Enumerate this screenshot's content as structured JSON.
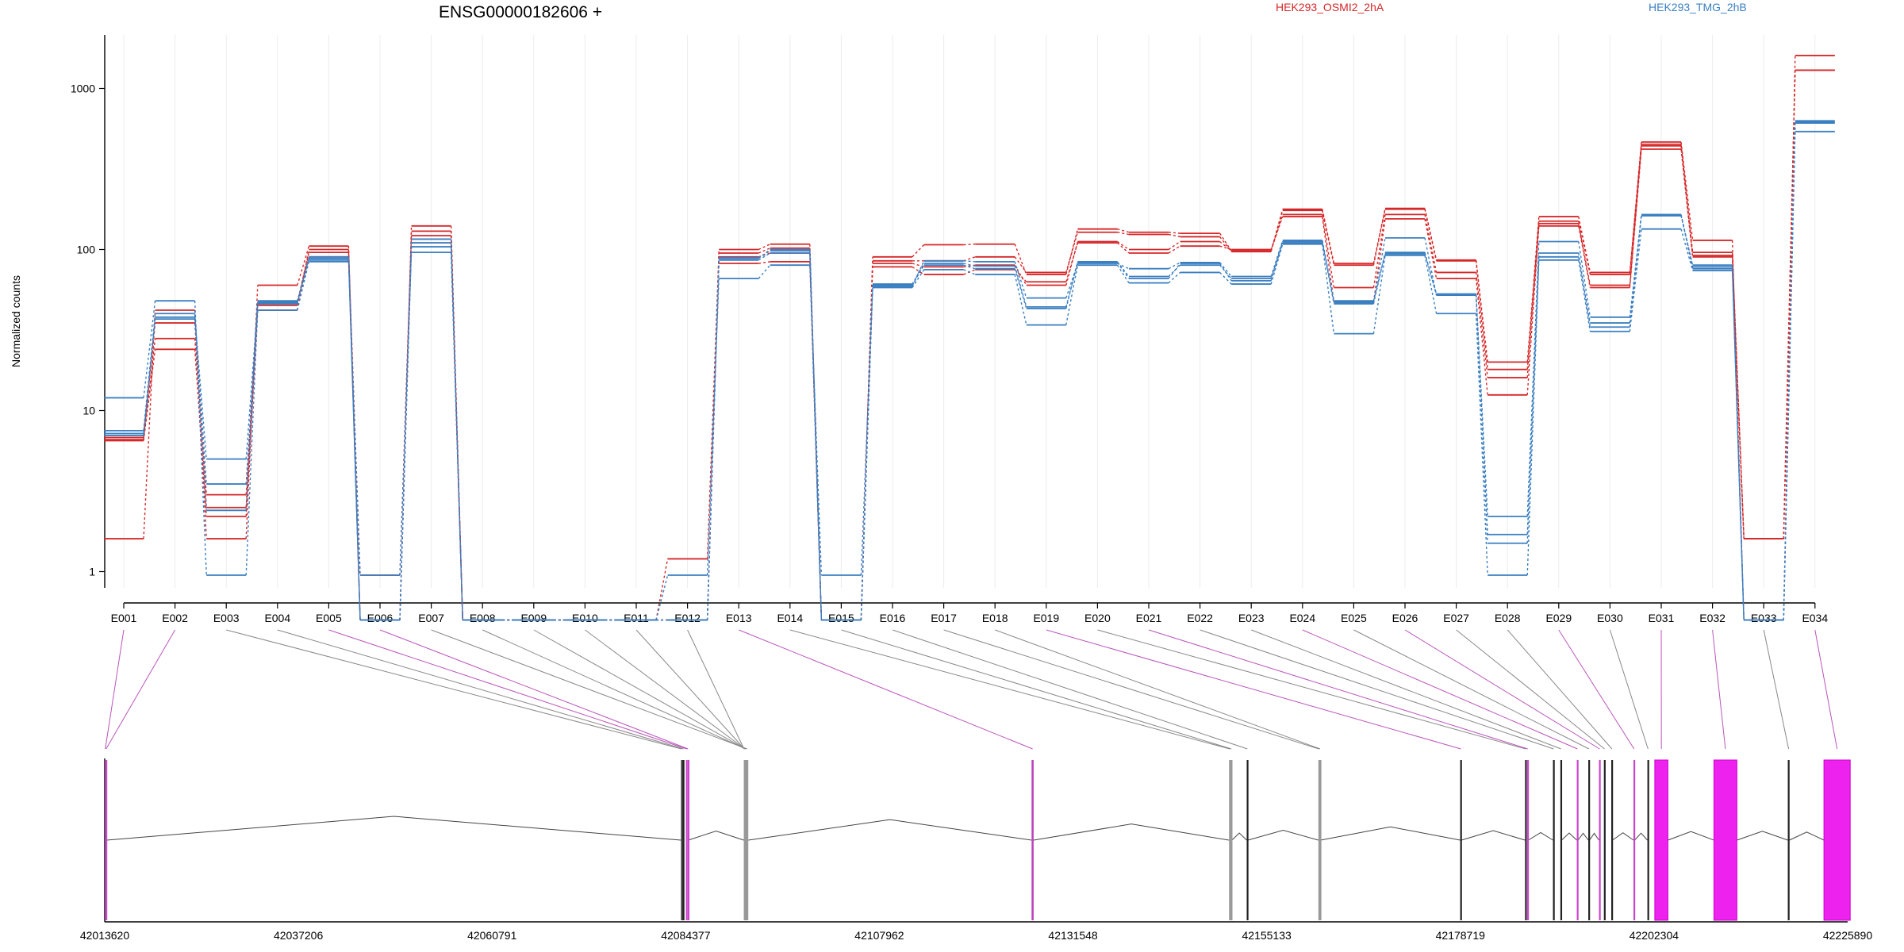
{
  "chart_data": {
    "type": "line",
    "title": "ENSG00000182606 +",
    "ylabel": "Normalized counts",
    "xlabel": "",
    "yscale": "log",
    "ylim": [
      0.5,
      2200
    ],
    "yticks": [
      "1",
      "10",
      "100",
      "1000"
    ],
    "grid": "vertical lines at exon centers",
    "legend_position": "top",
    "legend": [
      {
        "name": "HEK293_OSMI2_2hA",
        "color": "#d62728"
      },
      {
        "name": "HEK293_TMG_2hB",
        "color": "#3a7fc1"
      }
    ],
    "categories": [
      "E001",
      "E002",
      "E003",
      "E004",
      "E005",
      "E006",
      "E007",
      "E008",
      "E009",
      "E010",
      "E011",
      "E012",
      "E013",
      "E014",
      "E015",
      "E016",
      "E017",
      "E018",
      "E019",
      "E020",
      "E021",
      "E022",
      "E023",
      "E024",
      "E025",
      "E026",
      "E027",
      "E028",
      "E029",
      "E030",
      "E031",
      "E032",
      "E033",
      "E034"
    ],
    "series": [
      {
        "group": "HEK293_OSMI2_2hA",
        "color": "#d62728",
        "values": [
          6.5,
          24,
          2.2,
          42,
          90,
          0.5,
          110,
          0.5,
          0.5,
          0.5,
          0.5,
          0.5,
          82,
          84,
          0.5,
          78,
          70,
          75,
          63,
          110,
          95,
          105,
          100,
          160,
          47,
          155,
          66,
          12.5,
          140,
          58,
          420,
          90,
          1.6,
          1300
        ]
      },
      {
        "group": "HEK293_OSMI2_2hA",
        "color": "#d62728",
        "values": [
          6.6,
          28,
          3.0,
          47,
          96,
          0.95,
          122,
          0.5,
          0.5,
          0.5,
          0.5,
          1.2,
          95,
          102,
          0.5,
          85,
          85,
          90,
          72,
          128,
          124,
          120,
          97,
          175,
          80,
          178,
          85,
          18,
          150,
          70,
          450,
          96,
          1.6,
          1300
        ]
      },
      {
        "group": "HEK293_OSMI2_2hA",
        "color": "#d62728",
        "values": [
          1.6,
          42,
          1.6,
          60,
          105,
          0.5,
          140,
          0.5,
          0.5,
          0.5,
          0.5,
          0.5,
          100,
          108,
          0.5,
          90,
          107,
          108,
          70,
          134,
          128,
          126,
          98,
          178,
          82,
          180,
          86,
          20,
          160,
          72,
          465,
          114,
          0.5,
          1600
        ]
      },
      {
        "group": "HEK293_OSMI2_2hA",
        "color": "#d62728",
        "values": [
          6.8,
          35,
          2.5,
          45,
          100,
          0.5,
          130,
          0.5,
          0.5,
          0.5,
          0.5,
          0.5,
          90,
          95,
          0.5,
          82,
          78,
          80,
          60,
          112,
          100,
          112,
          98,
          165,
          58,
          165,
          72,
          16,
          145,
          60,
          440,
          92,
          1.6,
          1300
        ]
      },
      {
        "group": "HEK293_TMG_2hB",
        "color": "#3a7fc1",
        "values": [
          12,
          48,
          0.95,
          42,
          84,
          0.95,
          96,
          0.5,
          0.5,
          0.5,
          0.5,
          0.95,
          66,
          80,
          0.95,
          58,
          75,
          70,
          34,
          80,
          62,
          72,
          61,
          108,
          30,
          92,
          40,
          0.95,
          86,
          31,
          134,
          74,
          0.5,
          540
        ]
      },
      {
        "group": "HEK293_TMG_2hB",
        "color": "#3a7fc1",
        "values": [
          7.5,
          40,
          3.5,
          47,
          88,
          0.5,
          110,
          0.5,
          0.5,
          0.5,
          0.5,
          0.5,
          86,
          95,
          0.5,
          60,
          80,
          76,
          43,
          84,
          68,
          80,
          66,
          112,
          47,
          118,
          52,
          1.7,
          90,
          35,
          165,
          78,
          0.5,
          610
        ]
      },
      {
        "group": "HEK293_TMG_2hB",
        "color": "#3a7fc1",
        "values": [
          7.2,
          37,
          2.4,
          48,
          86,
          0.5,
          116,
          0.5,
          0.5,
          0.5,
          0.5,
          0.5,
          88,
          100,
          0.5,
          59,
          85,
          84,
          50,
          82,
          76,
          83,
          68,
          114,
          48,
          94,
          53,
          2.2,
          112,
          38,
          162,
          80,
          0.5,
          620
        ]
      },
      {
        "group": "HEK293_TMG_2hB",
        "color": "#3a7fc1",
        "values": [
          7.0,
          38,
          5.0,
          46,
          90,
          0.5,
          104,
          0.5,
          0.5,
          0.5,
          0.5,
          0.5,
          89,
          98,
          0.5,
          61,
          82,
          79,
          44,
          83,
          66,
          82,
          64,
          110,
          46,
          96,
          52,
          1.5,
          95,
          33,
          164,
          76,
          0.5,
          630
        ]
      }
    ],
    "gene_model": {
      "coordinate_ticks": [
        "42013620",
        "42037206",
        "42060791",
        "42084377",
        "42107962",
        "42131548",
        "42155133",
        "42178719",
        "42202304",
        "42225890"
      ],
      "exons": [
        {
          "id": "E001",
          "start": 42013650,
          "end": 42013720,
          "color": "#d24bd2",
          "connector": "#bb55bb"
        },
        {
          "id": "E002",
          "start": 42013720,
          "end": 42013860,
          "color": "#c44ec4",
          "connector": "#bb55bb"
        },
        {
          "id": "E003",
          "start": 42083800,
          "end": 42083900,
          "color": "#444444",
          "connector": "#888888"
        },
        {
          "id": "E004",
          "start": 42084000,
          "end": 42084220,
          "color": "#222222",
          "connector": "#888888"
        },
        {
          "id": "E005",
          "start": 42084400,
          "end": 42084600,
          "color": "#cc44cc",
          "connector": "#bb55bb"
        },
        {
          "id": "E006",
          "start": 42084620,
          "end": 42084700,
          "color": "#cc44cc",
          "connector": "#bb55bb"
        },
        {
          "id": "E007",
          "start": 42091700,
          "end": 42092000,
          "color": "#999999",
          "connector": "#888888"
        },
        {
          "id": "E008",
          "start": 42091650,
          "end": 42091700,
          "color": "#999999",
          "connector": "#888888"
        },
        {
          "id": "E009",
          "start": 42091600,
          "end": 42091650,
          "color": "#999999",
          "connector": "#888888"
        },
        {
          "id": "E010",
          "start": 42091550,
          "end": 42091600,
          "color": "#999999",
          "connector": "#888888"
        },
        {
          "id": "E011",
          "start": 42091500,
          "end": 42091550,
          "color": "#999999",
          "connector": "#888888"
        },
        {
          "id": "E012",
          "start": 42091450,
          "end": 42091500,
          "color": "#999999",
          "connector": "#888888"
        },
        {
          "id": "E013",
          "start": 42126500,
          "end": 42126750,
          "color": "#bb44bb",
          "connector": "#bb55bb"
        },
        {
          "id": "E014",
          "start": 42150550,
          "end": 42150700,
          "color": "#999999",
          "connector": "#888888"
        },
        {
          "id": "E015",
          "start": 42150750,
          "end": 42150900,
          "color": "#999999",
          "connector": "#888888"
        },
        {
          "id": "E016",
          "start": 42152700,
          "end": 42152850,
          "color": "#222222",
          "connector": "#888888"
        },
        {
          "id": "E017",
          "start": 42161430,
          "end": 42161520,
          "color": "#999999",
          "connector": "#888888"
        },
        {
          "id": "E018",
          "start": 42161580,
          "end": 42161700,
          "color": "#999999",
          "connector": "#888888"
        },
        {
          "id": "E019",
          "start": 42178700,
          "end": 42178850,
          "color": "#222222",
          "connector": "#bb55bb"
        },
        {
          "id": "E020",
          "start": 42186600,
          "end": 42186750,
          "color": "#222222",
          "connector": "#888888"
        },
        {
          "id": "E021",
          "start": 42186850,
          "end": 42187000,
          "color": "#cc44cc",
          "connector": "#bb55bb"
        },
        {
          "id": "E022",
          "start": 42190000,
          "end": 42190150,
          "color": "#222222",
          "connector": "#888888"
        },
        {
          "id": "E023",
          "start": 42190900,
          "end": 42191050,
          "color": "#222222",
          "connector": "#888888"
        },
        {
          "id": "E024",
          "start": 42192900,
          "end": 42193050,
          "color": "#cc44cc",
          "connector": "#bb55bb"
        },
        {
          "id": "E025",
          "start": 42194300,
          "end": 42194450,
          "color": "#222222",
          "connector": "#888888"
        },
        {
          "id": "E026",
          "start": 42195600,
          "end": 42195750,
          "color": "#cc44cc",
          "connector": "#bb55bb"
        },
        {
          "id": "E027",
          "start": 42196200,
          "end": 42196350,
          "color": "#222222",
          "connector": "#888888"
        },
        {
          "id": "E028",
          "start": 42197100,
          "end": 42197250,
          "color": "#222222",
          "connector": "#888888"
        },
        {
          "id": "E029",
          "start": 42199800,
          "end": 42199950,
          "color": "#cc44cc",
          "connector": "#bb55bb"
        },
        {
          "id": "E030",
          "start": 42201500,
          "end": 42201650,
          "color": "#222222",
          "connector": "#888888"
        },
        {
          "id": "E031",
          "start": 42202400,
          "end": 42204000,
          "color": "#ee22ee",
          "connector": "#bb55bb"
        },
        {
          "id": "E032",
          "start": 42209600,
          "end": 42212400,
          "color": "#ee22ee",
          "connector": "#bb55bb"
        },
        {
          "id": "E033",
          "start": 42218600,
          "end": 42218800,
          "color": "#222222",
          "connector": "#888888"
        },
        {
          "id": "E034",
          "start": 42223000,
          "end": 42226200,
          "color": "#ee22ee",
          "connector": "#bb55bb"
        }
      ]
    }
  }
}
